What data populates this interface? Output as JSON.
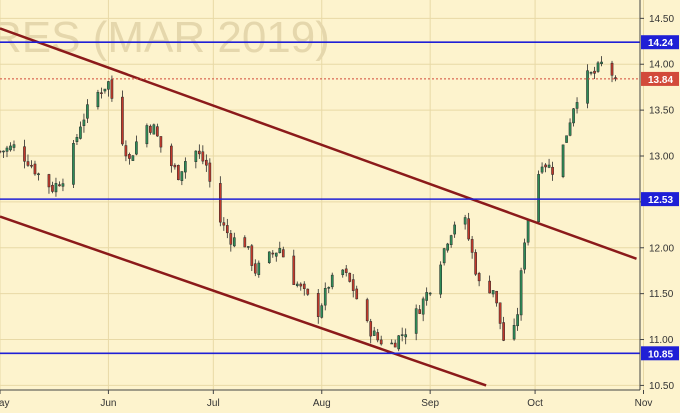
{
  "chart_data": {
    "type": "candlestick",
    "watermark": "RES (MAR 2019)",
    "x_tick_labels": [
      "May",
      "Jun",
      "Jul",
      "Aug",
      "Sep",
      "Oct",
      "Nov"
    ],
    "y_tick_labels": [
      "10.50",
      "11.00",
      "11.50",
      "12.00",
      "12.50",
      "13.00",
      "13.50",
      "14.00",
      "14.50"
    ],
    "ylim": [
      10.45,
      14.7
    ],
    "xlim": [
      0,
      183
    ],
    "grid": true,
    "horizontal_levels": [
      {
        "label": "14.24",
        "value": 14.24,
        "color": "#1f1fd6"
      },
      {
        "label": "12.53",
        "value": 12.53,
        "color": "#1f1fd6"
      },
      {
        "label": "10.85",
        "value": 10.85,
        "color": "#1f1fd6"
      }
    ],
    "last_price": {
      "label": "13.84",
      "value": 13.84,
      "color": "#d24a3a"
    },
    "trend_lines": [
      {
        "x1": 0,
        "y1": 14.39,
        "x2": 182,
        "y2": 11.88,
        "color": "#8b1a1a"
      },
      {
        "x1": 0,
        "y1": 12.34,
        "x2": 139,
        "y2": 10.5,
        "color": "#8b1a1a"
      }
    ],
    "colors": {
      "up": "#2e8b57",
      "down": "#c0392b",
      "background": "#fdf3cd"
    }
  }
}
